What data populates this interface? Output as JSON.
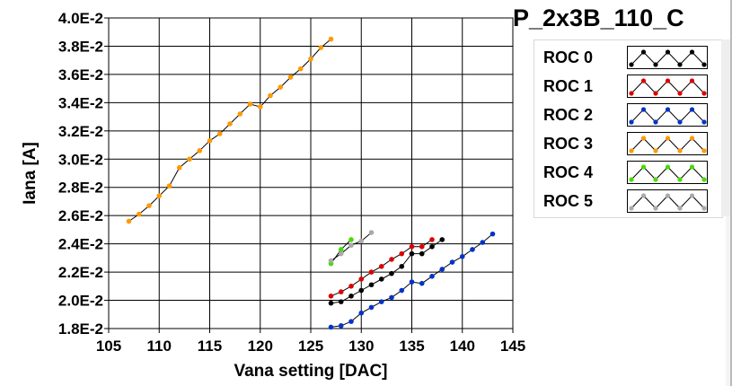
{
  "panel": {
    "title": "P_2x3B_110_C"
  },
  "legend": {
    "items": [
      {
        "label": "ROC 0",
        "color": "#000000"
      },
      {
        "label": "ROC 1",
        "color": "#dd0000"
      },
      {
        "label": "ROC 2",
        "color": "#0033cc"
      },
      {
        "label": "ROC 3",
        "color": "#ff9900"
      },
      {
        "label": "ROC 4",
        "color": "#44dd00"
      },
      {
        "label": "ROC 5",
        "color": "#aaaaaa"
      }
    ]
  },
  "chart_data": {
    "type": "line",
    "title": "",
    "xlabel": "Vana setting [DAC]",
    "ylabel": "Iana [A]",
    "xlim": [
      105,
      145
    ],
    "ylim": [
      0.018,
      0.04
    ],
    "xticks": [
      105,
      110,
      115,
      120,
      125,
      130,
      135,
      140,
      145
    ],
    "yticks": [
      0.018,
      0.02,
      0.022,
      0.024,
      0.026,
      0.028,
      0.03,
      0.032,
      0.034,
      0.036,
      0.038,
      0.04
    ],
    "ytick_labels": [
      "1.8E-2",
      "2.0E-2",
      "2.2E-2",
      "2.4E-2",
      "2.6E-2",
      "2.8E-2",
      "3.0E-2",
      "3.2E-2",
      "3.4E-2",
      "3.6E-2",
      "3.8E-2",
      "4.0E-2"
    ],
    "xtick_labels": [
      "105",
      "110",
      "115",
      "120",
      "125",
      "130",
      "135",
      "140",
      "145"
    ],
    "grid": true,
    "legend_position": "right",
    "series": [
      {
        "name": "ROC 0",
        "color": "#000000",
        "x": [
          127,
          128,
          129,
          130,
          131,
          132,
          133,
          134,
          135,
          136,
          137,
          138
        ],
        "y": [
          0.0198,
          0.0199,
          0.0203,
          0.0207,
          0.0211,
          0.0215,
          0.0219,
          0.0224,
          0.0233,
          0.0233,
          0.0238,
          0.0243
        ]
      },
      {
        "name": "ROC 1",
        "color": "#dd0000",
        "x": [
          127,
          128,
          129,
          130,
          131,
          132,
          133,
          134,
          135,
          136,
          137
        ],
        "y": [
          0.0203,
          0.0206,
          0.021,
          0.0215,
          0.022,
          0.0224,
          0.0229,
          0.0233,
          0.0238,
          0.0238,
          0.0243
        ]
      },
      {
        "name": "ROC 2",
        "color": "#0033cc",
        "x": [
          127,
          128,
          129,
          130,
          131,
          132,
          133,
          134,
          135,
          136,
          137,
          138,
          139,
          140,
          141,
          142,
          143
        ],
        "y": [
          0.0181,
          0.0182,
          0.0185,
          0.0191,
          0.0195,
          0.0199,
          0.0202,
          0.0207,
          0.0213,
          0.0212,
          0.0217,
          0.0222,
          0.0227,
          0.0231,
          0.0236,
          0.0241,
          0.0247
        ]
      },
      {
        "name": "ROC 3",
        "color": "#ff9900",
        "x": [
          107,
          108,
          109,
          110,
          111,
          112,
          113,
          114,
          115,
          116,
          117,
          118,
          119,
          120,
          121,
          122,
          123,
          124,
          125,
          126,
          127
        ],
        "y": [
          0.0256,
          0.0261,
          0.0267,
          0.0274,
          0.0281,
          0.0294,
          0.03,
          0.0306,
          0.0313,
          0.0318,
          0.0325,
          0.0332,
          0.0339,
          0.0337,
          0.0345,
          0.0351,
          0.0358,
          0.0364,
          0.0371,
          0.0379,
          0.0385
        ]
      },
      {
        "name": "ROC 4",
        "color": "#44dd00",
        "x": [
          127,
          128,
          129
        ],
        "y": [
          0.0226,
          0.0236,
          0.0243
        ]
      },
      {
        "name": "ROC 5",
        "color": "#aaaaaa",
        "x": [
          127,
          128,
          129,
          130,
          131
        ],
        "y": [
          0.0228,
          0.0233,
          0.0239,
          0.0242,
          0.0248
        ]
      }
    ]
  }
}
